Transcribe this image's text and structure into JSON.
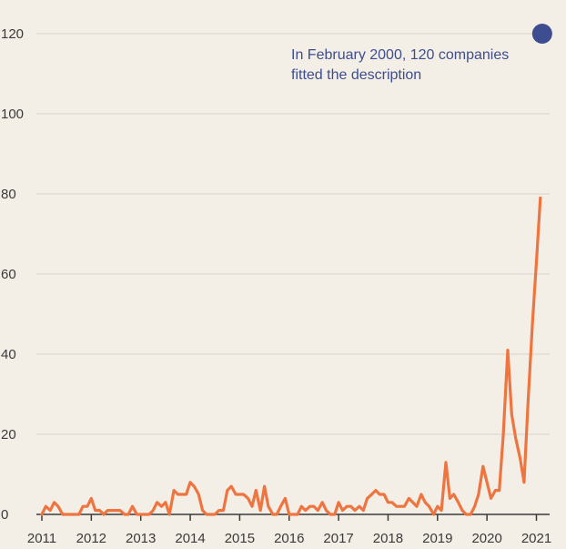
{
  "chart_data": {
    "type": "line",
    "title": "",
    "xlabel": "",
    "ylabel": "",
    "xlim": [
      2011,
      2021.2
    ],
    "ylim": [
      0,
      120
    ],
    "grid": true,
    "yticks": [
      0,
      20,
      40,
      60,
      80,
      100,
      120
    ],
    "xticks": [
      2011,
      2012,
      2013,
      2014,
      2015,
      2016,
      2017,
      2018,
      2019,
      2020,
      2021
    ],
    "xtick_labels": [
      "2011",
      "2012",
      "2013",
      "2014",
      "2015",
      "2016",
      "2017",
      "2018",
      "2019",
      "2020",
      "2021"
    ],
    "ytick_labels": [
      "0",
      "20",
      "40",
      "60",
      "80",
      "100",
      "120"
    ],
    "colors": {
      "line": "#ee7440",
      "marker": "#3d4d8f",
      "grid": "#d8d2c6",
      "axis": "#3a3a3a"
    },
    "series": [
      {
        "name": "",
        "values": [
          {
            "x": 2011.0,
            "y": 0
          },
          {
            "x": 2011.08,
            "y": 2
          },
          {
            "x": 2011.17,
            "y": 1
          },
          {
            "x": 2011.25,
            "y": 3
          },
          {
            "x": 2011.33,
            "y": 2
          },
          {
            "x": 2011.42,
            "y": 0
          },
          {
            "x": 2011.5,
            "y": 0
          },
          {
            "x": 2011.58,
            "y": 0
          },
          {
            "x": 2011.67,
            "y": 0
          },
          {
            "x": 2011.75,
            "y": 0
          },
          {
            "x": 2011.83,
            "y": 2
          },
          {
            "x": 2011.92,
            "y": 2
          },
          {
            "x": 2012.0,
            "y": 4
          },
          {
            "x": 2012.08,
            "y": 1
          },
          {
            "x": 2012.17,
            "y": 1
          },
          {
            "x": 2012.25,
            "y": 0
          },
          {
            "x": 2012.33,
            "y": 1
          },
          {
            "x": 2012.42,
            "y": 1
          },
          {
            "x": 2012.5,
            "y": 1
          },
          {
            "x": 2012.58,
            "y": 1
          },
          {
            "x": 2012.67,
            "y": 0
          },
          {
            "x": 2012.75,
            "y": 0
          },
          {
            "x": 2012.83,
            "y": 2
          },
          {
            "x": 2012.92,
            "y": 0
          },
          {
            "x": 2013.0,
            "y": 0
          },
          {
            "x": 2013.08,
            "y": 0
          },
          {
            "x": 2013.17,
            "y": 0
          },
          {
            "x": 2013.25,
            "y": 1
          },
          {
            "x": 2013.33,
            "y": 3
          },
          {
            "x": 2013.42,
            "y": 2
          },
          {
            "x": 2013.5,
            "y": 3
          },
          {
            "x": 2013.58,
            "y": 0
          },
          {
            "x": 2013.67,
            "y": 6
          },
          {
            "x": 2013.75,
            "y": 5
          },
          {
            "x": 2013.83,
            "y": 5
          },
          {
            "x": 2013.92,
            "y": 5
          },
          {
            "x": 2014.0,
            "y": 8
          },
          {
            "x": 2014.08,
            "y": 7
          },
          {
            "x": 2014.17,
            "y": 5
          },
          {
            "x": 2014.25,
            "y": 1
          },
          {
            "x": 2014.33,
            "y": 0
          },
          {
            "x": 2014.42,
            "y": 0
          },
          {
            "x": 2014.5,
            "y": 0
          },
          {
            "x": 2014.58,
            "y": 1
          },
          {
            "x": 2014.67,
            "y": 1
          },
          {
            "x": 2014.75,
            "y": 6
          },
          {
            "x": 2014.83,
            "y": 7
          },
          {
            "x": 2014.92,
            "y": 5
          },
          {
            "x": 2015.0,
            "y": 5
          },
          {
            "x": 2015.08,
            "y": 5
          },
          {
            "x": 2015.17,
            "y": 4
          },
          {
            "x": 2015.25,
            "y": 2
          },
          {
            "x": 2015.33,
            "y": 6
          },
          {
            "x": 2015.42,
            "y": 1
          },
          {
            "x": 2015.5,
            "y": 7
          },
          {
            "x": 2015.58,
            "y": 2
          },
          {
            "x": 2015.67,
            "y": 0
          },
          {
            "x": 2015.75,
            "y": 0
          },
          {
            "x": 2015.83,
            "y": 2
          },
          {
            "x": 2015.92,
            "y": 4
          },
          {
            "x": 2016.0,
            "y": 0
          },
          {
            "x": 2016.08,
            "y": 0
          },
          {
            "x": 2016.17,
            "y": 0
          },
          {
            "x": 2016.25,
            "y": 2
          },
          {
            "x": 2016.33,
            "y": 1
          },
          {
            "x": 2016.42,
            "y": 2
          },
          {
            "x": 2016.5,
            "y": 2
          },
          {
            "x": 2016.58,
            "y": 1
          },
          {
            "x": 2016.67,
            "y": 3
          },
          {
            "x": 2016.75,
            "y": 1
          },
          {
            "x": 2016.83,
            "y": 0
          },
          {
            "x": 2016.92,
            "y": 0
          },
          {
            "x": 2017.0,
            "y": 3
          },
          {
            "x": 2017.08,
            "y": 1
          },
          {
            "x": 2017.17,
            "y": 2
          },
          {
            "x": 2017.25,
            "y": 2
          },
          {
            "x": 2017.33,
            "y": 1
          },
          {
            "x": 2017.42,
            "y": 2
          },
          {
            "x": 2017.5,
            "y": 1
          },
          {
            "x": 2017.58,
            "y": 4
          },
          {
            "x": 2017.67,
            "y": 5
          },
          {
            "x": 2017.75,
            "y": 6
          },
          {
            "x": 2017.83,
            "y": 5
          },
          {
            "x": 2017.92,
            "y": 5
          },
          {
            "x": 2018.0,
            "y": 3
          },
          {
            "x": 2018.08,
            "y": 3
          },
          {
            "x": 2018.17,
            "y": 2
          },
          {
            "x": 2018.25,
            "y": 2
          },
          {
            "x": 2018.33,
            "y": 2
          },
          {
            "x": 2018.42,
            "y": 4
          },
          {
            "x": 2018.5,
            "y": 3
          },
          {
            "x": 2018.58,
            "y": 2
          },
          {
            "x": 2018.67,
            "y": 5
          },
          {
            "x": 2018.75,
            "y": 3
          },
          {
            "x": 2018.83,
            "y": 2
          },
          {
            "x": 2018.92,
            "y": 0
          },
          {
            "x": 2019.0,
            "y": 2
          },
          {
            "x": 2019.08,
            "y": 1
          },
          {
            "x": 2019.17,
            "y": 13
          },
          {
            "x": 2019.25,
            "y": 4
          },
          {
            "x": 2019.33,
            "y": 5
          },
          {
            "x": 2019.42,
            "y": 3
          },
          {
            "x": 2019.5,
            "y": 1
          },
          {
            "x": 2019.58,
            "y": 0
          },
          {
            "x": 2019.67,
            "y": 0
          },
          {
            "x": 2019.75,
            "y": 2
          },
          {
            "x": 2019.83,
            "y": 5
          },
          {
            "x": 2019.92,
            "y": 12
          },
          {
            "x": 2020.0,
            "y": 8
          },
          {
            "x": 2020.08,
            "y": 4
          },
          {
            "x": 2020.17,
            "y": 6
          },
          {
            "x": 2020.25,
            "y": 6
          },
          {
            "x": 2020.33,
            "y": 20
          },
          {
            "x": 2020.42,
            "y": 41
          },
          {
            "x": 2020.5,
            "y": 25
          },
          {
            "x": 2020.58,
            "y": 19
          },
          {
            "x": 2020.67,
            "y": 14
          },
          {
            "x": 2020.75,
            "y": 8
          },
          {
            "x": 2020.83,
            "y": 28
          },
          {
            "x": 2020.92,
            "y": 48
          },
          {
            "x": 2021.0,
            "y": 63
          },
          {
            "x": 2021.08,
            "y": 79
          }
        ]
      }
    ],
    "annotation": {
      "point": {
        "x": 2021.08,
        "y": 120
      },
      "lines": [
        "In February 2000, 120 companies",
        "fitted the description"
      ]
    }
  }
}
